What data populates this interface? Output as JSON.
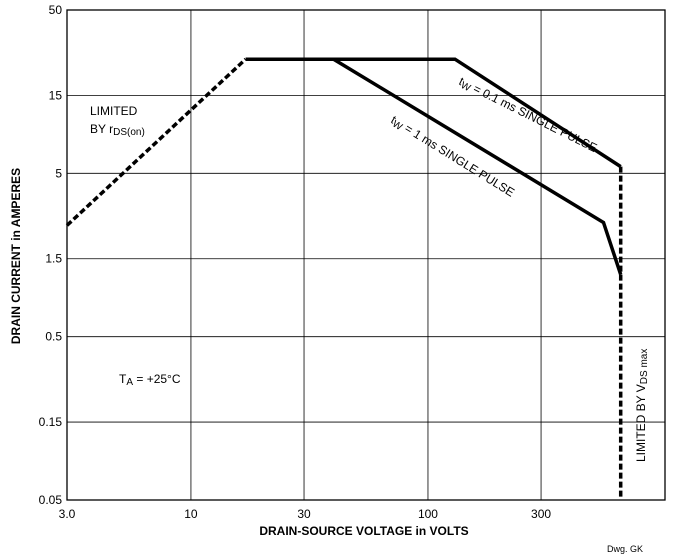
{
  "chart_data": {
    "type": "line",
    "xscale": "log",
    "yscale": "log",
    "xlim": [
      3.0,
      1000
    ],
    "ylim": [
      0.05,
      50
    ],
    "xticks": [
      3.0,
      10,
      30,
      100,
      300
    ],
    "xtick_labels": [
      "3.0",
      "10",
      "30",
      "100",
      "300"
    ],
    "yticks": [
      0.05,
      0.15,
      0.5,
      1.5,
      5,
      15,
      50
    ],
    "ytick_labels": [
      "0.05",
      "0.15",
      "0.5",
      "1.5",
      "5",
      "15",
      "50"
    ],
    "xlabel": "DRAIN-SOURCE VOLTAGE in VOLTS",
    "ylabel": "DRAIN CURRENT in AMPERES",
    "grid": true,
    "series": [
      {
        "name": "LIMITED BY rDS(on)",
        "style": "dashed",
        "x": [
          3.0,
          17
        ],
        "y": [
          2.4,
          25
        ]
      },
      {
        "name": "tw = 0.1 ms SINGLE PULSE",
        "style": "solid",
        "x": [
          17,
          130,
          650
        ],
        "y": [
          25,
          25,
          5.5
        ]
      },
      {
        "name": "tw = 1 ms SINGLE PULSE",
        "style": "solid",
        "x": [
          40,
          550,
          650
        ],
        "y": [
          25,
          2.5,
          1.2
        ]
      },
      {
        "name": "LIMITED BY VDS max",
        "style": "dashed",
        "x": [
          650,
          650
        ],
        "y": [
          5.5,
          0.05
        ]
      }
    ],
    "annotations": {
      "rds_line1": "LIMITED",
      "rds_line2_prefix": "BY r",
      "rds_line2_sub": "DS(on)",
      "pulse01_prefix": "t",
      "pulse01_sub": "W",
      "pulse01_rest": " = 0.1 ms SINGLE PULSE",
      "pulse1_prefix": "t",
      "pulse1_sub": "W",
      "pulse1_rest": " = 1 ms SINGLE PULSE",
      "vds_prefix": "LIMITED BY V",
      "vds_sub": "DS max",
      "temp_prefix": "T",
      "temp_sub": "A",
      "temp_rest": " = +25°C"
    },
    "footer": "Dwg. GK"
  }
}
